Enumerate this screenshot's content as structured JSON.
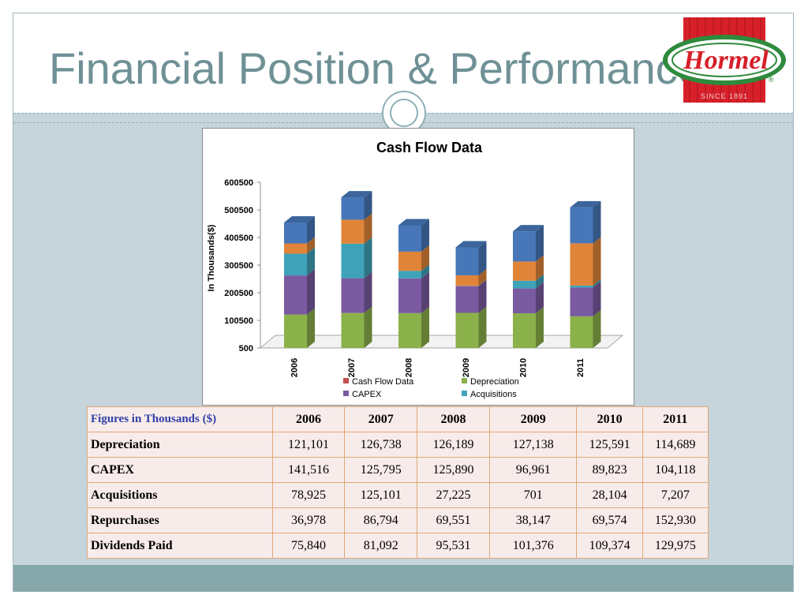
{
  "slide": {
    "title": "Financial Position & Performance"
  },
  "logo": {
    "brand": "Hormel",
    "tagline": "SINCE 1891",
    "registered": "®",
    "colors": {
      "red": "#d6202a",
      "green": "#2f8a3c",
      "white": "#ffffff"
    }
  },
  "chart_data": {
    "type": "bar",
    "stacked": true,
    "three_d": true,
    "title": "Cash Flow Data",
    "ylabel": "In Thousands($)",
    "xlabel": "",
    "categories": [
      "2006",
      "2007",
      "2008",
      "2009",
      "2010",
      "2011"
    ],
    "y_ticks": [
      "600500",
      "500500",
      "400500",
      "300500",
      "200500",
      "100500",
      "500"
    ],
    "ylim": [
      500,
      600500
    ],
    "grid": false,
    "legend_position": "bottom",
    "legend": [
      "Cash Flow Data",
      "Depreciation",
      "CAPEX",
      "Acquisitions"
    ],
    "series": [
      {
        "name": "Cash Flow Data",
        "color": "#c0504d",
        "values": [
          0,
          0,
          0,
          0,
          0,
          0
        ]
      },
      {
        "name": "Depreciation",
        "color": "#8bb14a",
        "values": [
          121101,
          126738,
          126189,
          127138,
          125591,
          114689
        ]
      },
      {
        "name": "CAPEX",
        "color": "#7a5aa0",
        "values": [
          141516,
          125795,
          125890,
          96961,
          89823,
          104118
        ]
      },
      {
        "name": "Acquisitions",
        "color": "#3ea2b9",
        "values": [
          78925,
          125101,
          27225,
          701,
          28104,
          7207
        ]
      },
      {
        "color": "#e0843a",
        "values": [
          36978,
          86794,
          69551,
          38147,
          69574,
          152930
        ]
      },
      {
        "color": "#4777b8",
        "values": [
          75840,
          81092,
          95531,
          101376,
          109374,
          129975
        ]
      }
    ]
  },
  "table": {
    "corner": "Figures in Thousands ($)",
    "years": [
      "2006",
      "2007",
      "2008",
      "2009",
      "2010",
      "2011"
    ],
    "rows": [
      {
        "label": "Depreciation",
        "values": [
          "121,101",
          "126,738",
          "126,189",
          "127,138",
          "125,591",
          "114,689"
        ]
      },
      {
        "label": "CAPEX",
        "values": [
          "141,516",
          "125,795",
          "125,890",
          "96,961",
          "89,823",
          "104,118"
        ]
      },
      {
        "label": "Acquisitions",
        "values": [
          "78,925",
          "125,101",
          "27,225",
          "701",
          "28,104",
          "7,207"
        ]
      },
      {
        "label": "Repurchases",
        "values": [
          "36,978",
          "86,794",
          "69,551",
          "38,147",
          "69,574",
          "152,930"
        ]
      },
      {
        "label": "Dividends Paid",
        "values": [
          "75,840",
          "81,092",
          "95,531",
          "101,376",
          "109,374",
          "129,975"
        ]
      }
    ]
  }
}
